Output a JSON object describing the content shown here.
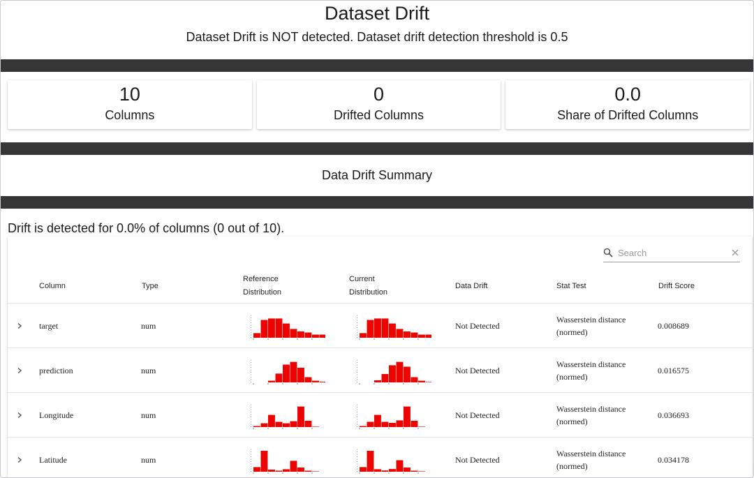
{
  "header": {
    "title": "Dataset Drift",
    "subtitle": "Dataset Drift is NOT detected. Dataset drift detection threshold is 0.5"
  },
  "counters": [
    {
      "value": "10",
      "label": "Columns"
    },
    {
      "value": "0",
      "label": "Drifted Columns"
    },
    {
      "value": "0.0",
      "label": "Share of Drifted Columns"
    }
  ],
  "summary": {
    "title": "Data Drift Summary",
    "message": "Drift is detected for 0.0% of columns (0 out of 10)."
  },
  "search": {
    "placeholder": "Search"
  },
  "colors": {
    "bar": "#ed0400",
    "band": "#363636"
  },
  "table": {
    "headers": {
      "column": "Column",
      "type": "Type",
      "reference_line1": "Reference",
      "reference_line2": "Distribution",
      "current_line1": "Current",
      "current_line2": "Distribution",
      "data_drift": "Data Drift",
      "stat_test": "Stat Test",
      "drift_score": "Drift Score"
    },
    "rows": [
      {
        "column": "target",
        "type": "num",
        "data_drift": "Not Detected",
        "stat_test_line1": "Wasserstein distance",
        "stat_test_line2": "(normed)",
        "drift_score": "0.008689",
        "reference_hist": [
          0.22,
          0.85,
          0.92,
          0.92,
          0.68,
          0.42,
          0.3,
          0.25,
          0.15,
          0.15,
          0.32
        ],
        "current_hist": [
          0.22,
          0.85,
          0.92,
          0.92,
          0.68,
          0.42,
          0.3,
          0.25,
          0.15,
          0.15,
          0.32
        ]
      },
      {
        "column": "prediction",
        "type": "num",
        "data_drift": "Not Detected",
        "stat_test_line1": "Wasserstein distance",
        "stat_test_line2": "(normed)",
        "drift_score": "0.016575",
        "reference_hist": [
          0.0,
          0.0,
          0.08,
          0.42,
          0.85,
          0.98,
          0.7,
          0.25,
          0.08,
          0.03,
          0.0
        ],
        "current_hist": [
          0.0,
          0.0,
          0.1,
          0.4,
          0.82,
          0.98,
          0.75,
          0.25,
          0.08,
          0.02,
          0.0
        ]
      },
      {
        "column": "Longitude",
        "type": "num",
        "data_drift": "Not Detected",
        "stat_test_line1": "Wasserstein distance",
        "stat_test_line2": "(normed)",
        "drift_score": "0.036693",
        "reference_hist": [
          0.05,
          0.18,
          0.58,
          0.25,
          0.18,
          0.28,
          0.98,
          0.3,
          0.02,
          0.0,
          0.0
        ],
        "current_hist": [
          0.05,
          0.25,
          0.58,
          0.25,
          0.2,
          0.32,
          0.98,
          0.3,
          0.02,
          0.0,
          0.0
        ]
      },
      {
        "column": "Latitude",
        "type": "num",
        "data_drift": "Not Detected",
        "stat_test_line1": "Wasserstein distance",
        "stat_test_line2": "(normed)",
        "drift_score": "0.034178",
        "reference_hist": [
          0.22,
          1.0,
          0.1,
          0.05,
          0.12,
          0.52,
          0.2,
          0.05,
          0.02,
          0.0,
          0.0
        ],
        "current_hist": [
          0.22,
          1.0,
          0.12,
          0.06,
          0.13,
          0.55,
          0.2,
          0.05,
          0.02,
          0.0,
          0.0
        ]
      }
    ]
  }
}
